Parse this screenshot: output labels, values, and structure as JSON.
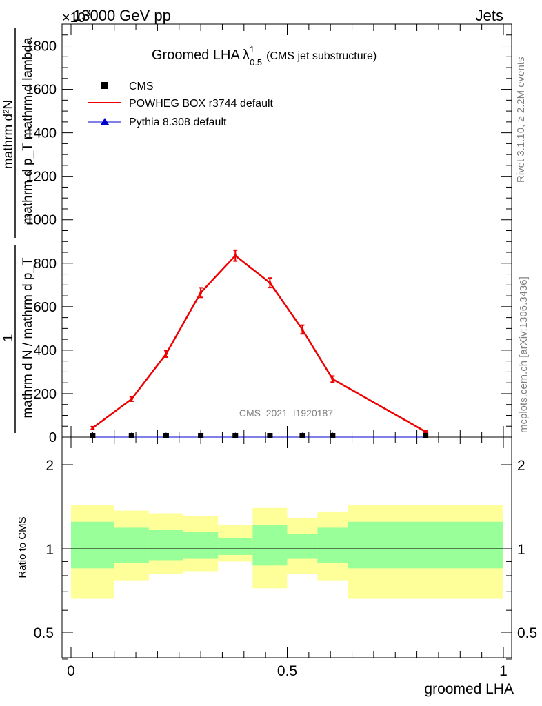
{
  "header": {
    "left": "13000 GeV pp",
    "right": "Jets"
  },
  "multiplier": {
    "base": "×10",
    "exp": "3"
  },
  "plot_title": {
    "main": "Groomed LHA",
    "lambda": "λ",
    "sup": "1",
    "sub": "0.5",
    "paren": "(CMS jet substructure)"
  },
  "legend": [
    {
      "label": "CMS",
      "color": "#000000",
      "marker": "square"
    },
    {
      "label": "POWHEG BOX r3744 default",
      "color": "#ee0000",
      "marker": "line"
    },
    {
      "label": "Pythia 8.308 default",
      "color": "#0000cc",
      "marker": "triangle"
    }
  ],
  "watermark": "CMS_2021_I1920187",
  "side_text": {
    "rivet": "Rivet 3.1.10, ≥ 2.2M events",
    "mcplots": "mcplots.cern.ch [arXiv:1306.3436]"
  },
  "ylabel": {
    "num1": "1",
    "den1": "mathrm d N / mathrm d p_T",
    "num2": "mathrm d²N",
    "den2": "mathrm d p_T mathrm d lambda"
  },
  "ratio_ylabel": "Ratio to CMS",
  "xlabel": "groomed LHA",
  "colors": {
    "red": "#ee0000",
    "blue": "#0000cc",
    "yellow": "#ffff99",
    "green": "#99ff99"
  },
  "chart_data": [
    {
      "type": "line",
      "title": "Groomed LHA λ^1_0.5 (CMS jet substructure)",
      "xlabel": "groomed LHA",
      "ylabel": "1/(dN/dp_T) d²N/(dp_T dλ)",
      "y_multiplier": 1000,
      "xlim": [
        0,
        1
      ],
      "ylim": [
        0,
        1900
      ],
      "x_ticks": [
        "0",
        "0.5",
        "1"
      ],
      "y_ticks": [
        "0",
        "200",
        "400",
        "600",
        "800",
        "1000",
        "1200",
        "1400",
        "1600",
        "1800"
      ],
      "series": [
        {
          "name": "POWHEG BOX r3744 default",
          "x": [
            0.05,
            0.14,
            0.22,
            0.3,
            0.38,
            0.46,
            0.535,
            0.605,
            0.82
          ],
          "y": [
            42,
            175,
            383,
            665,
            835,
            710,
            495,
            267,
            25
          ],
          "yerr": [
            6,
            10,
            15,
            22,
            25,
            22,
            20,
            14,
            4
          ]
        },
        {
          "name": "CMS",
          "x": [
            0.05,
            0.14,
            0.22,
            0.3,
            0.38,
            0.46,
            0.535,
            0.605,
            0.82
          ],
          "y": [
            0,
            0,
            0,
            0,
            0,
            0,
            0,
            0,
            0
          ]
        },
        {
          "name": "Pythia 8.308 default",
          "x": [
            0.05,
            0.14,
            0.22,
            0.3,
            0.38,
            0.46,
            0.535,
            0.605,
            0.82
          ],
          "y": [
            0,
            0,
            0,
            0,
            0,
            0,
            0,
            0,
            0
          ]
        }
      ]
    },
    {
      "type": "area",
      "title": "",
      "ylabel": "Ratio to CMS",
      "xlabel": "groomed LHA",
      "xlim": [
        0,
        1
      ],
      "ylim": [
        0.35,
        2.25
      ],
      "y_ticks": [
        "0.5",
        "1",
        "2"
      ],
      "reference_line": 1,
      "bins": [
        {
          "x0": 0.0,
          "x1": 0.1,
          "yellow": [
            0.66,
            1.43
          ],
          "green": [
            0.85,
            1.25
          ]
        },
        {
          "x0": 0.1,
          "x1": 0.18,
          "yellow": [
            0.77,
            1.37
          ],
          "green": [
            0.89,
            1.19
          ]
        },
        {
          "x0": 0.18,
          "x1": 0.26,
          "yellow": [
            0.81,
            1.34
          ],
          "green": [
            0.91,
            1.17
          ]
        },
        {
          "x0": 0.26,
          "x1": 0.34,
          "yellow": [
            0.83,
            1.31
          ],
          "green": [
            0.92,
            1.15
          ]
        },
        {
          "x0": 0.34,
          "x1": 0.42,
          "yellow": [
            0.9,
            1.22
          ],
          "green": [
            0.95,
            1.09
          ]
        },
        {
          "x0": 0.42,
          "x1": 0.5,
          "yellow": [
            0.72,
            1.4
          ],
          "green": [
            0.87,
            1.22
          ]
        },
        {
          "x0": 0.5,
          "x1": 0.57,
          "yellow": [
            0.81,
            1.29
          ],
          "green": [
            0.92,
            1.13
          ]
        },
        {
          "x0": 0.57,
          "x1": 0.64,
          "yellow": [
            0.77,
            1.36
          ],
          "green": [
            0.89,
            1.19
          ]
        },
        {
          "x0": 0.64,
          "x1": 1.0,
          "yellow": [
            0.66,
            1.43
          ],
          "green": [
            0.85,
            1.25
          ]
        }
      ]
    }
  ]
}
